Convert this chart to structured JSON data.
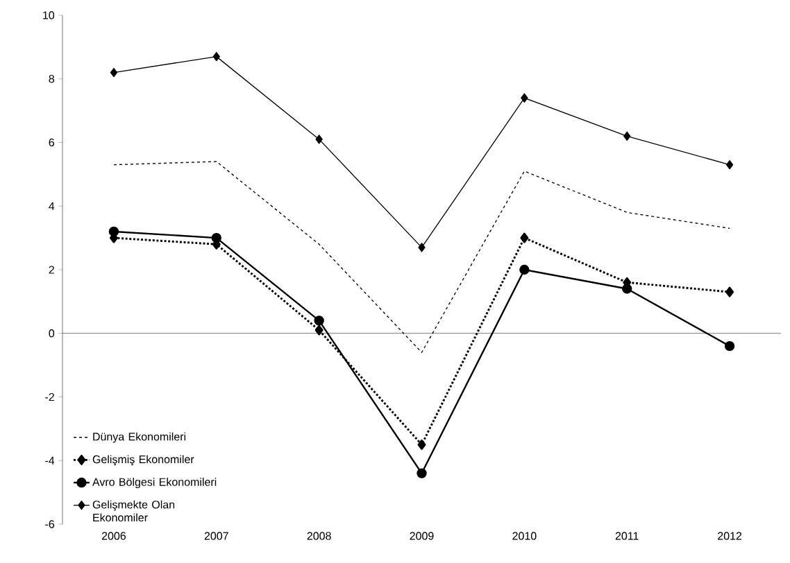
{
  "chart_data": {
    "type": "line",
    "categories": [
      "2006",
      "2007",
      "2008",
      "2009",
      "2010",
      "2011",
      "2012"
    ],
    "series": [
      {
        "name": "Dünya Ekonomileri",
        "color": "#000000",
        "line_style": "dashed",
        "marker": "none",
        "values": [
          5.3,
          5.4,
          2.8,
          -0.6,
          5.1,
          3.8,
          3.3
        ]
      },
      {
        "name": "Gelişmiş Ekonomiler",
        "color": "#000000",
        "line_style": "dotted",
        "marker": "diamond",
        "values": [
          3.0,
          2.8,
          0.1,
          -3.5,
          3.0,
          1.6,
          1.3
        ]
      },
      {
        "name": "Avro Bölgesi Ekonomileri",
        "color": "#000000",
        "line_style": "solid",
        "marker": "circle",
        "values": [
          3.2,
          3.0,
          0.4,
          -4.4,
          2.0,
          1.4,
          -0.4
        ]
      },
      {
        "name": "Gelişmekte Olan Ekonomiler",
        "color": "#000000",
        "line_style": "solid",
        "marker": "diamond",
        "values": [
          8.2,
          8.7,
          6.1,
          2.7,
          7.4,
          6.2,
          5.3
        ]
      }
    ],
    "ylim": [
      -6,
      10
    ],
    "yticks": [
      -6,
      -4,
      -2,
      0,
      2,
      4,
      6,
      8,
      10
    ],
    "legend": "bottom left"
  }
}
